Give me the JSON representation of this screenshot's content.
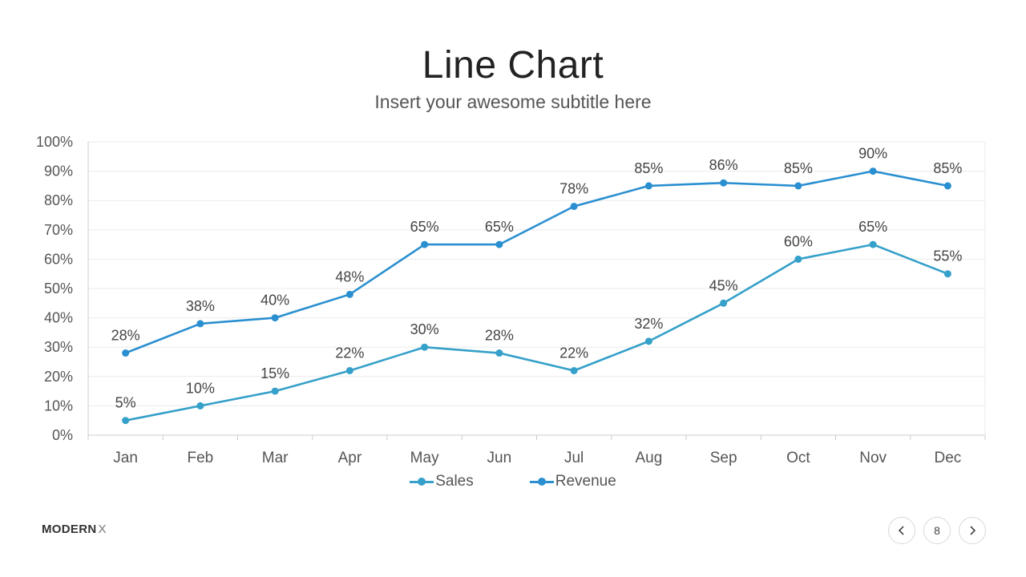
{
  "slide": {
    "title": "Line Chart",
    "subtitle": "Insert your awesome subtitle here"
  },
  "brand": {
    "name": "MODERN",
    "suffix": "X"
  },
  "pagination": {
    "page_number": "8",
    "prev_icon": "chevron-left-icon",
    "next_icon": "chevron-right-icon"
  },
  "colors": {
    "sales": "#35a0c9",
    "revenue": "#2a8fd0",
    "grid": "#ebebeb",
    "axis": "#cccccc"
  },
  "chart_data": {
    "type": "line",
    "title": "Line Chart",
    "subtitle": "Insert your awesome subtitle here",
    "xlabel": "",
    "ylabel": "",
    "categories": [
      "Jan",
      "Feb",
      "Mar",
      "Apr",
      "May",
      "Jun",
      "Jul",
      "Aug",
      "Sep",
      "Oct",
      "Nov",
      "Dec"
    ],
    "ylim": [
      0,
      100
    ],
    "yticks": [
      "0%",
      "10%",
      "20%",
      "30%",
      "40%",
      "50%",
      "60%",
      "70%",
      "80%",
      "90%",
      "100%"
    ],
    "value_suffix": "%",
    "grid": true,
    "legend_position": "bottom",
    "series": [
      {
        "name": "Sales",
        "values": [
          5,
          10,
          15,
          22,
          30,
          28,
          22,
          32,
          45,
          60,
          65,
          55
        ],
        "labels": [
          "5%",
          "10%",
          "15%",
          "22%",
          "30%",
          "28%",
          "22%",
          "32%",
          "45%",
          "60%",
          "65%",
          "55%"
        ]
      },
      {
        "name": "Revenue",
        "values": [
          28,
          38,
          40,
          48,
          65,
          65,
          78,
          85,
          86,
          85,
          90,
          85
        ],
        "labels": [
          "28%",
          "38%",
          "40%",
          "48%",
          "65%",
          "65%",
          "78%",
          "85%",
          "86%",
          "85%",
          "90%",
          "85%"
        ]
      }
    ]
  }
}
